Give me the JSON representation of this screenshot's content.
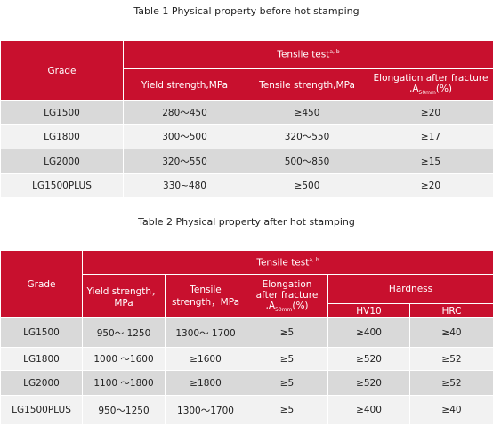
{
  "table1": {
    "caption": "Table 1  Physical property before hot stamping",
    "grade": "Grade",
    "group": "Tensile test",
    "group_sup": "a, b",
    "yield": "Yield strength,MPa",
    "tensile": "Tensile strength,MPa",
    "elong": "Elongation after fracture ,A",
    "elong_sub": "50mm",
    "elong_tail": "(%)",
    "rows": [
      [
        "LG1500",
        "280～450",
        "≥450",
        "≥20"
      ],
      [
        "LG1800",
        "300～500",
        "320～550",
        "≥17"
      ],
      [
        "LG2000",
        "320～550",
        "500～850",
        "≥15"
      ],
      [
        "LG1500PLUS",
        "330~480",
        "≥500",
        "≥20"
      ]
    ]
  },
  "table2": {
    "caption": "Table 2  Physical property after hot stamping",
    "grade": "Grade",
    "group": "Tensile test",
    "group_sup": "a, b",
    "yield": "Yield strength，MPa",
    "tensile": "Tensile strength，MPa",
    "elong": "Elongation after fracture ,A",
    "elong_sub": "50mm",
    "elong_tail": "(%)",
    "hardness": "Hardness",
    "hv": "HV10",
    "hrc": "HRC",
    "rows": [
      [
        "LG1500",
        "950～ 1250",
        "1300～ 1700",
        "≥5",
        "≥400",
        "≥40"
      ],
      [
        "LG1800",
        "1000 ～1600",
        "≥1600",
        "≥5",
        "≥520",
        "≥52"
      ],
      [
        "LG2000",
        "1100 ～1800",
        "≥1800",
        "≥5",
        "≥520",
        "≥52"
      ],
      [
        "LG1500PLUS",
        "950～1250",
        "1300～1700",
        "≥5",
        "≥400",
        "≥40"
      ]
    ]
  }
}
